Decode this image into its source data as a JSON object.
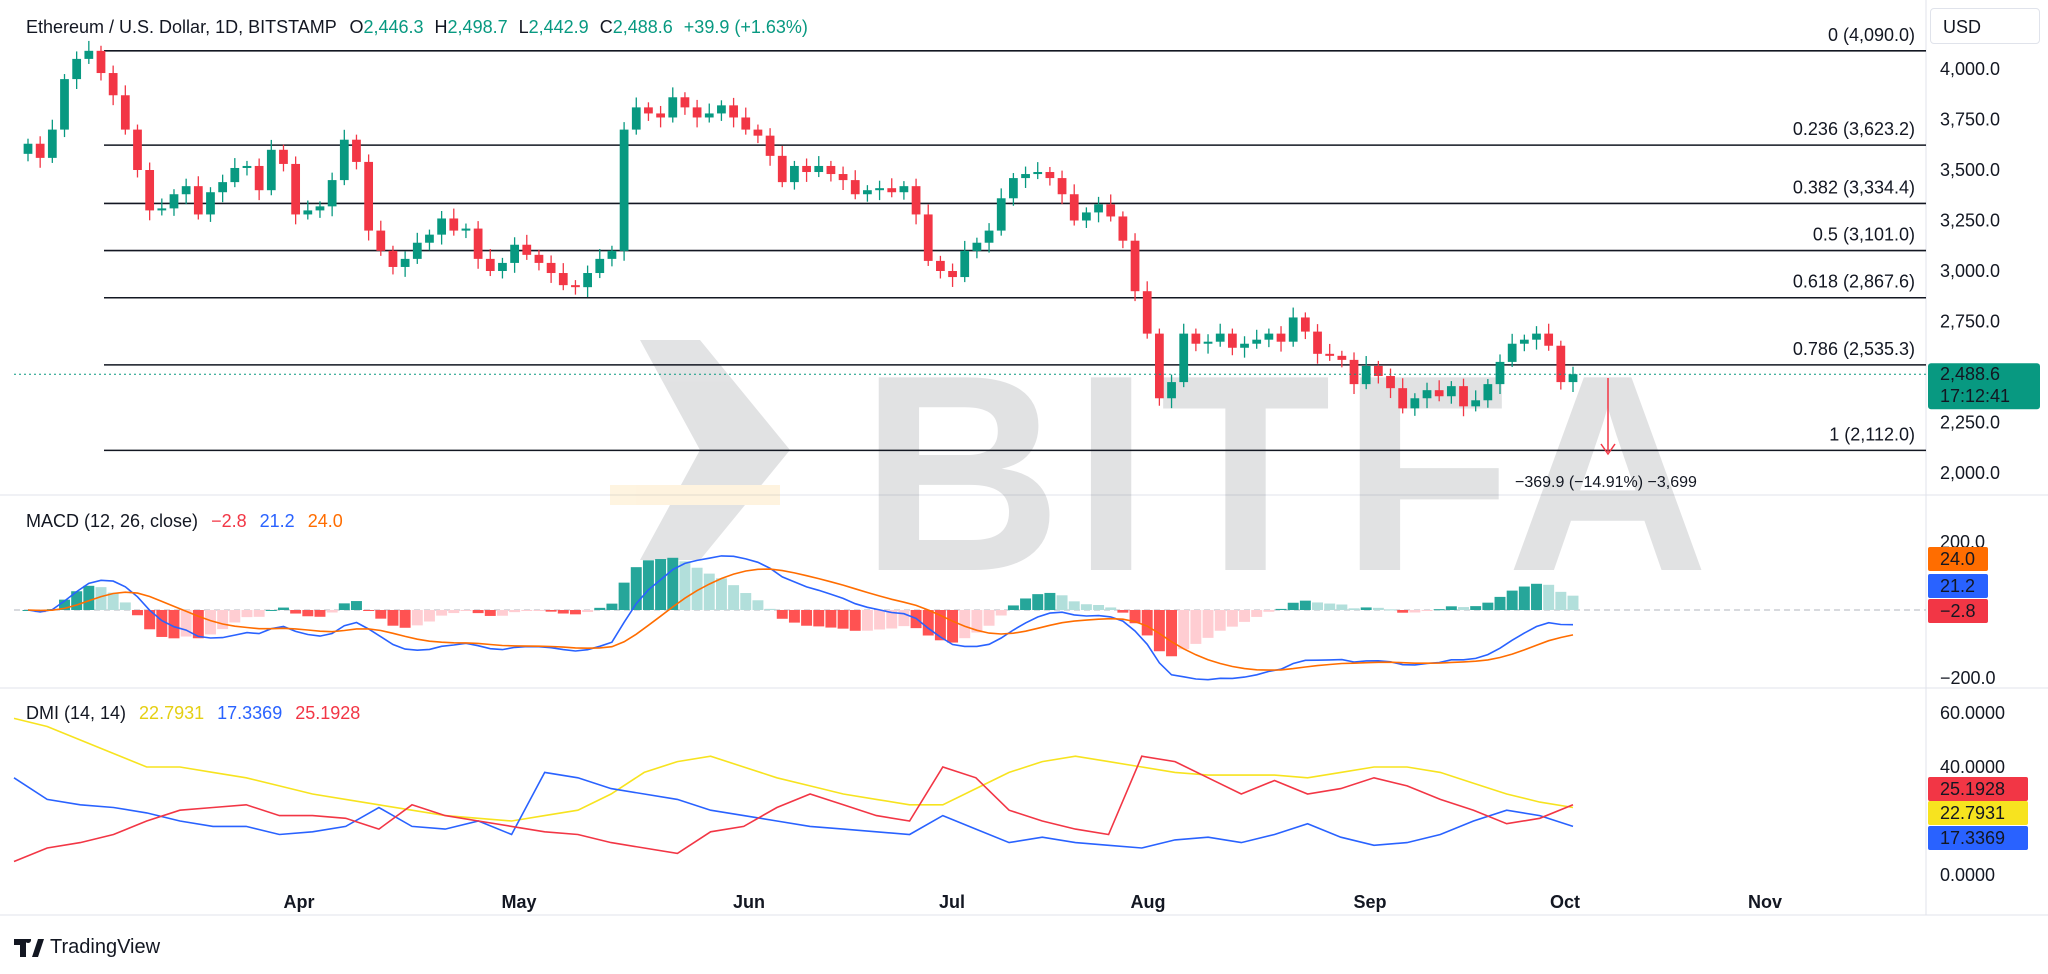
{
  "header": {
    "symbol": "Ethereum / U.S. Dollar, 1D, BITSTAMP",
    "o_label": "O",
    "o_value": "2,446.3",
    "h_label": "H",
    "h_value": "2,498.7",
    "l_label": "L",
    "l_value": "2,442.9",
    "c_label": "C",
    "c_value": "2,488.6",
    "change": "+39.9 (+1.63%)"
  },
  "currency_button": "USD",
  "brand": "TradingView",
  "watermark": "BITFA",
  "colors": {
    "up": "#089981",
    "down": "#f23645",
    "macd": "#2962ff",
    "signal": "#ff6d00",
    "plus_di": "#2962ff",
    "minus_di": "#f23645",
    "adx": "#f7e31f"
  },
  "chart_data": {
    "type": "candlestick",
    "title": "Ethereum / U.S. Dollar, 1D, BITSTAMP",
    "price_axis": {
      "ticks": [
        "4,000.0",
        "3,750.0",
        "3,500.0",
        "3,250.0",
        "3,000.0",
        "2,750.0",
        "2,500.0",
        "2,250.0",
        "2,000.0"
      ],
      "range": [
        1900,
        4200
      ]
    },
    "x_axis": {
      "labels": [
        "Apr",
        "May",
        "Jun",
        "Jul",
        "Aug",
        "Sep",
        "Oct",
        "Nov"
      ]
    },
    "closes": [
      3630,
      3560,
      3700,
      3950,
      4050,
      4090,
      3980,
      3870,
      3700,
      3500,
      3300,
      3310,
      3380,
      3420,
      3280,
      3390,
      3440,
      3510,
      3520,
      3400,
      3600,
      3530,
      3280,
      3300,
      3320,
      3450,
      3650,
      3540,
      3200,
      3100,
      3020,
      3060,
      3140,
      3180,
      3260,
      3200,
      3210,
      3060,
      3000,
      3040,
      3130,
      3080,
      3040,
      2990,
      2930,
      2920,
      2990,
      3060,
      3100,
      3700,
      3810,
      3780,
      3760,
      3860,
      3810,
      3760,
      3780,
      3820,
      3760,
      3700,
      3670,
      3570,
      3440,
      3520,
      3490,
      3520,
      3480,
      3450,
      3380,
      3400,
      3410,
      3390,
      3420,
      3280,
      3050,
      3000,
      2970,
      3100,
      3140,
      3200,
      3360,
      3460,
      3480,
      3490,
      3460,
      3380,
      3250,
      3290,
      3330,
      3270,
      3150,
      2900,
      2690,
      2370,
      2450,
      2690,
      2640,
      2650,
      2690,
      2620,
      2640,
      2660,
      2690,
      2650,
      2770,
      2700,
      2590,
      2580,
      2560,
      2440,
      2530,
      2480,
      2420,
      2320,
      2370,
      2410,
      2380,
      2430,
      2330,
      2360,
      2440,
      2550,
      2640,
      2660,
      2690,
      2630,
      2450,
      2489
    ],
    "current_price": "2,488.6",
    "countdown": "17:12:41",
    "fib_levels": [
      {
        "ratio": "0",
        "label": "0 (4,090.0)",
        "price": 4090.0
      },
      {
        "ratio": "0.236",
        "label": "0.236 (3,623.2)",
        "price": 3623.2
      },
      {
        "ratio": "0.382",
        "label": "0.382 (3,334.4)",
        "price": 3334.4
      },
      {
        "ratio": "0.5",
        "label": "0.5 (3,101.0)",
        "price": 3101.0
      },
      {
        "ratio": "0.618",
        "label": "0.618 (2,867.6)",
        "price": 2867.6
      },
      {
        "ratio": "0.786",
        "label": "0.786 (2,535.3)",
        "price": 2535.3
      },
      {
        "ratio": "1",
        "label": "1 (2,112.0)",
        "price": 2112.0
      }
    ],
    "measure_label": "−369.9 (−14.91%) −3,699",
    "macd": {
      "title": "MACD (12, 26, close)",
      "hist_value": "−2.8",
      "macd_value": "21.2",
      "signal_value": "24.0",
      "axis": [
        "200.0",
        "−200.0"
      ],
      "range": [
        -250,
        250
      ]
    },
    "dmi": {
      "title": "DMI (14, 14)",
      "adx_value": "22.7931",
      "plus_di_value": "17.3369",
      "minus_di_value": "25.1928",
      "axis": [
        "60.0000",
        "40.0000",
        "0.0000"
      ],
      "range": [
        -3,
        65
      ],
      "adx": [
        58,
        55,
        50,
        45,
        40,
        40,
        38,
        36,
        33,
        30,
        28,
        26,
        24,
        22,
        21,
        20,
        22,
        24,
        30,
        38,
        42,
        44,
        40,
        36,
        33,
        30,
        28,
        26,
        26,
        32,
        38,
        42,
        44,
        42,
        40,
        38,
        37,
        37,
        37,
        36,
        38,
        40,
        40,
        38,
        34,
        30,
        27,
        25
      ],
      "plus_di": [
        36,
        28,
        26,
        25,
        23,
        20,
        18,
        18,
        15,
        16,
        18,
        25,
        18,
        17,
        20,
        15,
        38,
        36,
        32,
        30,
        28,
        24,
        22,
        20,
        18,
        17,
        16,
        15,
        22,
        17,
        12,
        14,
        12,
        11,
        10,
        13,
        14,
        12,
        15,
        19,
        14,
        11,
        12,
        15,
        20,
        24,
        22,
        18
      ],
      "minus_di": [
        5,
        10,
        12,
        15,
        20,
        24,
        25,
        26,
        22,
        22,
        21,
        17,
        26,
        22,
        20,
        18,
        16,
        15,
        12,
        10,
        8,
        16,
        18,
        25,
        30,
        26,
        22,
        20,
        40,
        36,
        24,
        20,
        17,
        15,
        44,
        42,
        36,
        30,
        35,
        30,
        32,
        36,
        33,
        28,
        24,
        19,
        21,
        26
      ]
    }
  }
}
